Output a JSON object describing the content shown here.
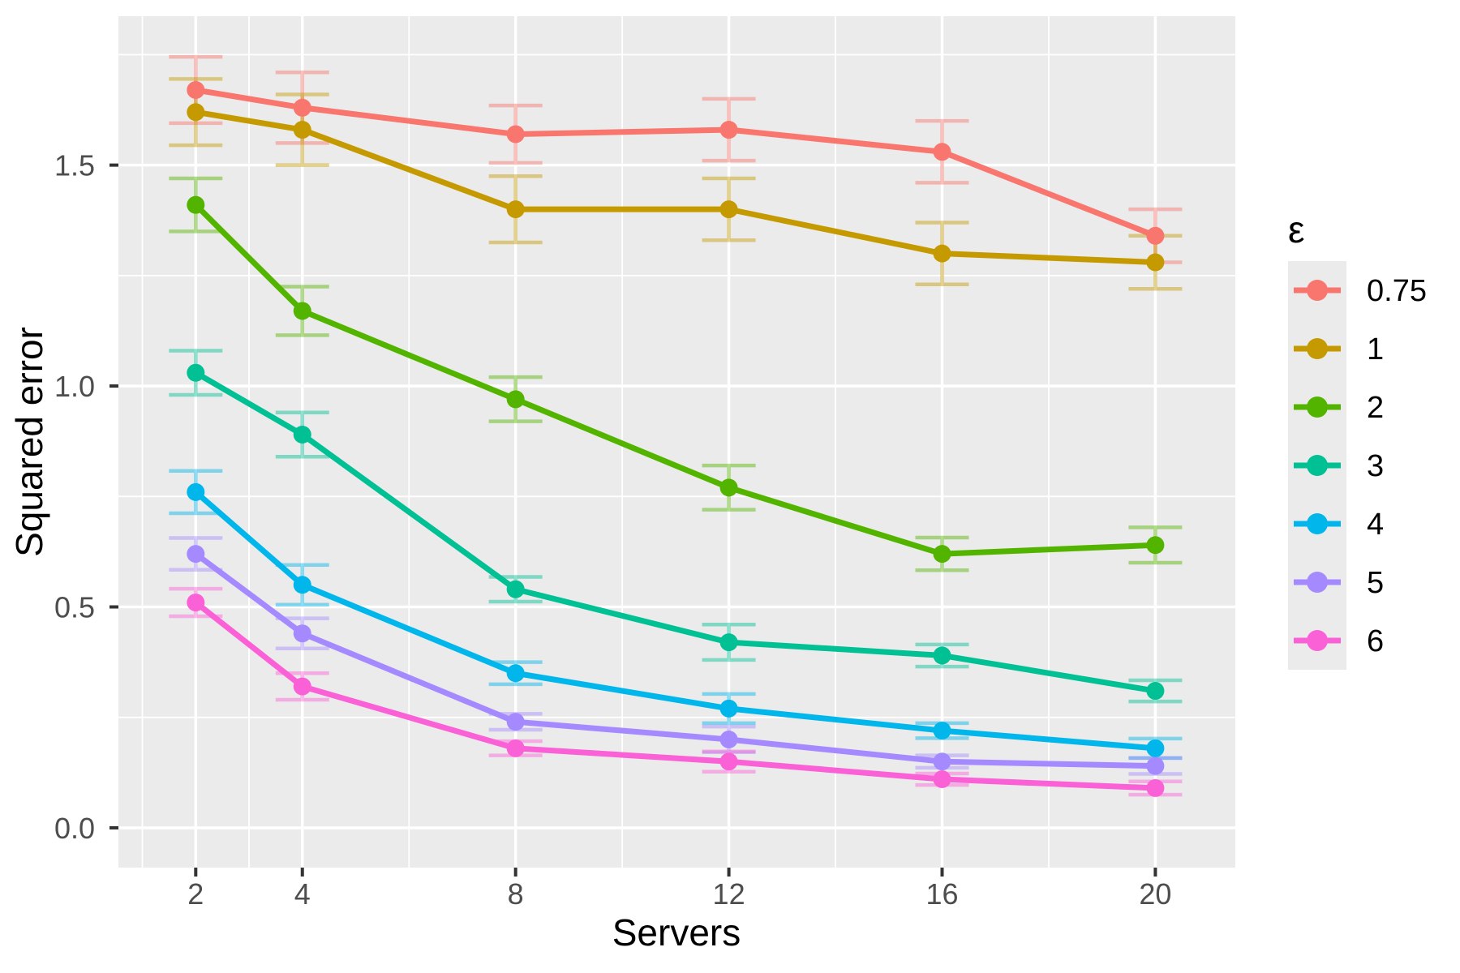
{
  "figure": {
    "background": "#FFFFFF",
    "panel_background": "#EBEBEB",
    "grid_color": "#FFFFFF",
    "tick_mark_color": "#333333",
    "axis_text_color": "#4D4D4D",
    "title_text_color": "#000000",
    "error_bar_opacity": 0.45
  },
  "chart_data": {
    "type": "line",
    "title": "",
    "xlabel": "Servers",
    "ylabel": "Squared error",
    "legend_title": "ε",
    "legend_position": "right",
    "grid": "major+minor",
    "error_bars": true,
    "x": [
      2,
      4,
      8,
      12,
      16,
      20
    ],
    "x_tick_labels": [
      "2",
      "4",
      "8",
      "12",
      "16",
      "20"
    ],
    "y_tick_values": [
      0.0,
      0.5,
      1.0,
      1.5
    ],
    "y_tick_labels": [
      "0.0",
      "0.5",
      "1.0",
      "1.5"
    ],
    "x_minor_breaks": [
      1,
      3,
      6,
      10,
      14,
      18
    ],
    "y_minor_breaks": [
      0.25,
      0.75,
      1.25,
      1.75
    ],
    "xlim": [
      0.55,
      21.5
    ],
    "ylim": [
      -0.09,
      1.837
    ],
    "series": [
      {
        "name": "0.75",
        "color": "#F8766D",
        "values": [
          1.67,
          1.63,
          1.57,
          1.58,
          1.53,
          1.34
        ],
        "error": [
          0.075,
          0.08,
          0.065,
          0.07,
          0.07,
          0.06
        ]
      },
      {
        "name": "1",
        "color": "#C49A00",
        "values": [
          1.62,
          1.58,
          1.4,
          1.4,
          1.3,
          1.28
        ],
        "error": [
          0.075,
          0.08,
          0.075,
          0.07,
          0.07,
          0.06
        ]
      },
      {
        "name": "2",
        "color": "#53B400",
        "values": [
          1.41,
          1.17,
          0.97,
          0.77,
          0.62,
          0.64
        ],
        "error": [
          0.06,
          0.055,
          0.05,
          0.05,
          0.037,
          0.04
        ]
      },
      {
        "name": "3",
        "color": "#00C094",
        "values": [
          1.03,
          0.89,
          0.54,
          0.42,
          0.39,
          0.31
        ],
        "error": [
          0.05,
          0.05,
          0.028,
          0.04,
          0.025,
          0.024
        ]
      },
      {
        "name": "4",
        "color": "#00B6EB",
        "values": [
          0.76,
          0.55,
          0.35,
          0.27,
          0.22,
          0.18
        ],
        "error": [
          0.048,
          0.045,
          0.025,
          0.033,
          0.017,
          0.022
        ]
      },
      {
        "name": "5",
        "color": "#A58AFF",
        "values": [
          0.62,
          0.44,
          0.24,
          0.2,
          0.15,
          0.14
        ],
        "error": [
          0.036,
          0.034,
          0.018,
          0.029,
          0.014,
          0.018
        ]
      },
      {
        "name": "6",
        "color": "#FB61D7",
        "values": [
          0.51,
          0.32,
          0.18,
          0.15,
          0.11,
          0.09
        ],
        "error": [
          0.031,
          0.03,
          0.016,
          0.023,
          0.013,
          0.015
        ]
      }
    ]
  }
}
